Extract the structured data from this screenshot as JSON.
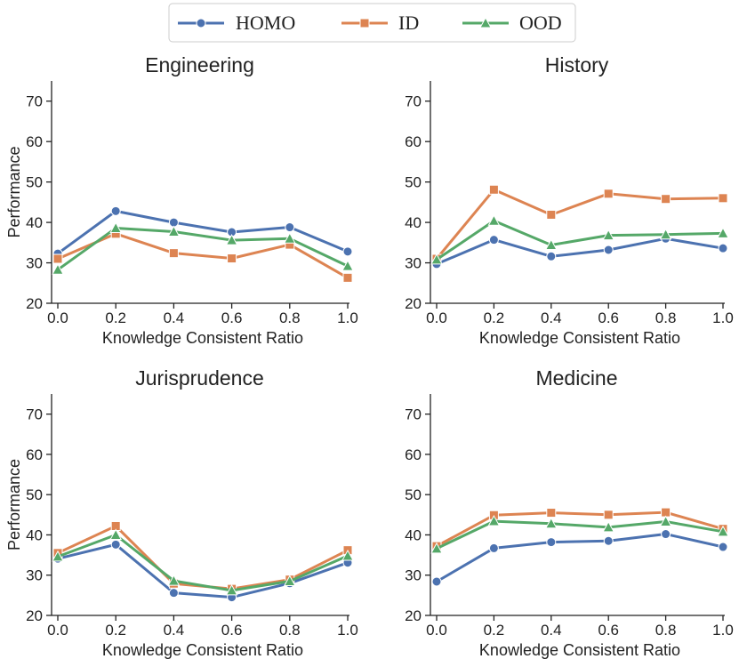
{
  "legend": {
    "items": [
      {
        "label": "HOMO",
        "color": "#4C72B0",
        "marker": "circle"
      },
      {
        "label": "ID",
        "color": "#DD8452",
        "marker": "square"
      },
      {
        "label": "OOD",
        "color": "#55A868",
        "marker": "triangle"
      }
    ]
  },
  "chart_data": [
    {
      "type": "line",
      "title": "Engineering",
      "xlabel": "Knowledge Consistent Ratio",
      "ylabel": "Performance",
      "x": [
        0.0,
        0.2,
        0.4,
        0.6,
        0.8,
        1.0
      ],
      "x_ticks": [
        "0.0",
        "0.2",
        "0.4",
        "0.6",
        "0.8",
        "1.0"
      ],
      "y_ticks": [
        "20",
        "30",
        "40",
        "50",
        "60",
        "70"
      ],
      "ylim": [
        20,
        75
      ],
      "series": [
        {
          "name": "HOMO",
          "values": [
            32.3,
            42.8,
            40.0,
            37.6,
            38.8,
            32.8
          ]
        },
        {
          "name": "ID",
          "values": [
            31.0,
            37.2,
            32.4,
            31.1,
            34.5,
            26.3
          ]
        },
        {
          "name": "OOD",
          "values": [
            28.3,
            38.6,
            37.7,
            35.6,
            36.0,
            29.2
          ]
        }
      ]
    },
    {
      "type": "line",
      "title": "History",
      "xlabel": "Knowledge Consistent Ratio",
      "ylabel": "",
      "x": [
        0.0,
        0.2,
        0.4,
        0.6,
        0.8,
        1.0
      ],
      "x_ticks": [
        "0.0",
        "0.2",
        "0.4",
        "0.6",
        "0.8",
        "1.0"
      ],
      "y_ticks": [
        "20",
        "30",
        "40",
        "50",
        "60",
        "70"
      ],
      "ylim": [
        20,
        75
      ],
      "series": [
        {
          "name": "HOMO",
          "values": [
            29.7,
            35.7,
            31.6,
            33.2,
            36.0,
            33.6
          ]
        },
        {
          "name": "ID",
          "values": [
            31.0,
            48.1,
            41.9,
            47.1,
            45.8,
            46.0
          ]
        },
        {
          "name": "OOD",
          "values": [
            30.8,
            40.4,
            34.4,
            36.8,
            37.0,
            37.3
          ]
        }
      ]
    },
    {
      "type": "line",
      "title": "Jurisprudence",
      "xlabel": "Knowledge Consistent Ratio",
      "ylabel": "Performance",
      "x": [
        0.0,
        0.2,
        0.4,
        0.6,
        0.8,
        1.0
      ],
      "x_ticks": [
        "0.0",
        "0.2",
        "0.4",
        "0.6",
        "0.8",
        "1.0"
      ],
      "y_ticks": [
        "20",
        "30",
        "40",
        "50",
        "60",
        "70"
      ],
      "ylim": [
        20,
        75
      ],
      "series": [
        {
          "name": "HOMO",
          "values": [
            34.1,
            37.6,
            25.6,
            24.5,
            28.0,
            33.1
          ]
        },
        {
          "name": "ID",
          "values": [
            35.5,
            42.2,
            27.9,
            26.6,
            28.9,
            36.2
          ]
        },
        {
          "name": "OOD",
          "values": [
            34.6,
            40.0,
            28.6,
            26.2,
            28.5,
            34.8
          ]
        }
      ]
    },
    {
      "type": "line",
      "title": "Medicine",
      "xlabel": "Knowledge Consistent Ratio",
      "ylabel": "",
      "x": [
        0.0,
        0.2,
        0.4,
        0.6,
        0.8,
        1.0
      ],
      "x_ticks": [
        "0.0",
        "0.2",
        "0.4",
        "0.6",
        "0.8",
        "1.0"
      ],
      "y_ticks": [
        "20",
        "30",
        "40",
        "50",
        "60",
        "70"
      ],
      "ylim": [
        20,
        75
      ],
      "series": [
        {
          "name": "HOMO",
          "values": [
            28.4,
            36.7,
            38.2,
            38.5,
            40.2,
            37.0
          ]
        },
        {
          "name": "ID",
          "values": [
            37.2,
            44.9,
            45.5,
            45.0,
            45.6,
            41.5
          ]
        },
        {
          "name": "OOD",
          "values": [
            36.6,
            43.4,
            42.8,
            41.9,
            43.3,
            40.8
          ]
        }
      ]
    }
  ]
}
